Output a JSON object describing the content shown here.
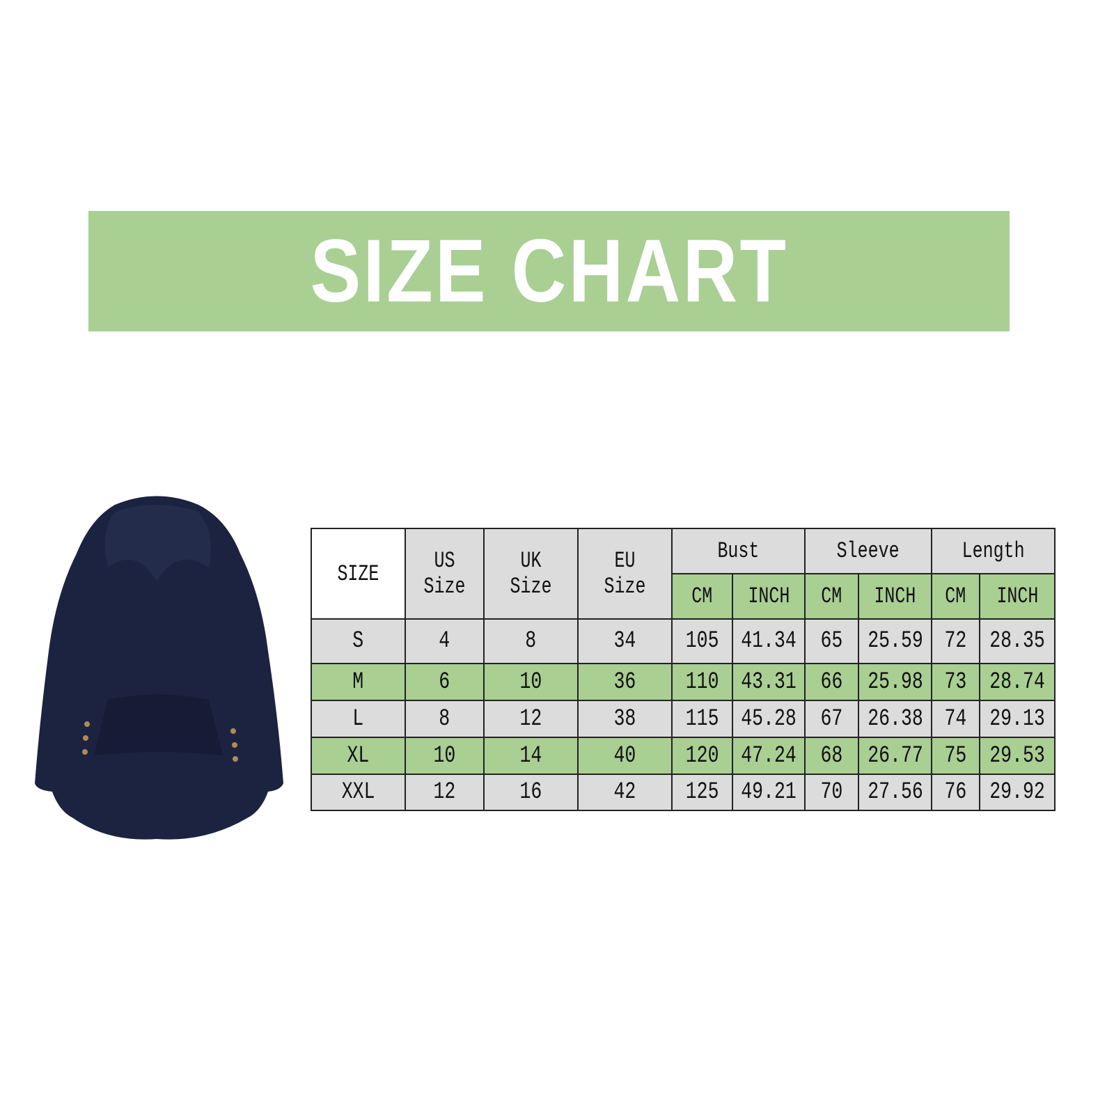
{
  "title": "SIZE CHART",
  "colors": {
    "accent_green": "#a9cf93",
    "gray_row": "#dcdcdc",
    "hoodie": "#1c2340"
  },
  "product_image": "navy-fleece-hoodie",
  "table": {
    "headers": {
      "size": "SIZE",
      "us": "US Size",
      "uk": "UK Size",
      "eu": "EU Size",
      "groups": [
        "Bust",
        "Sleeve",
        "Length"
      ],
      "units": [
        "CM",
        "INCH",
        "CM",
        "INCH",
        "CM",
        "INCH"
      ]
    },
    "rows": [
      [
        "S",
        "4",
        "8",
        "34",
        "105",
        "41.34",
        "65",
        "25.59",
        "72",
        "28.35"
      ],
      [
        "M",
        "6",
        "10",
        "36",
        "110",
        "43.31",
        "66",
        "25.98",
        "73",
        "28.74"
      ],
      [
        "L",
        "8",
        "12",
        "38",
        "115",
        "45.28",
        "67",
        "26.38",
        "74",
        "29.13"
      ],
      [
        "XL",
        "10",
        "14",
        "40",
        "120",
        "47.24",
        "68",
        "26.77",
        "75",
        "29.53"
      ],
      [
        "XXL",
        "12",
        "16",
        "42",
        "125",
        "49.21",
        "70",
        "27.56",
        "76",
        "29.92"
      ]
    ]
  }
}
